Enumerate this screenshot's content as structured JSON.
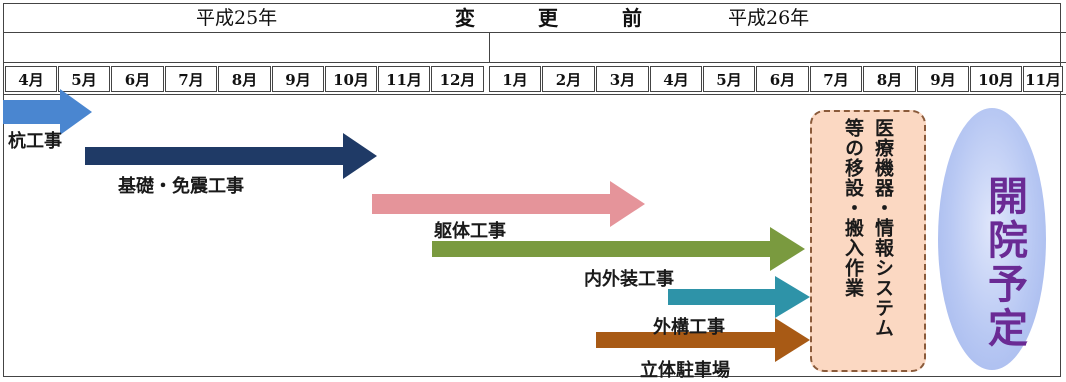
{
  "header": {
    "title_chars": [
      "変",
      "更",
      "前"
    ]
  },
  "years": [
    {
      "label": "平成25年"
    },
    {
      "label": "平成26年"
    }
  ],
  "months": [
    "4月",
    "5月",
    "6月",
    "7月",
    "8月",
    "9月",
    "10月",
    "11月",
    "12月",
    "1月",
    "2月",
    "3月",
    "4月",
    "5月",
    "6月",
    "7月",
    "8月",
    "9月",
    "10月",
    "11月"
  ],
  "tasks": [
    {
      "label": "杭工事",
      "color": "#4a86d0"
    },
    {
      "label": "基礎・免震工事",
      "color": "#1f3a66"
    },
    {
      "label": "躯体工事",
      "color": "#e5949a"
    },
    {
      "label": "内外装工事",
      "color": "#7a9a3f"
    },
    {
      "label": "外構工事",
      "color": "#2e93a8"
    },
    {
      "label": "立体駐車場",
      "color": "#a85a15"
    }
  ],
  "move_box": {
    "lines": [
      "医療機器・情報システム",
      "等の移設・搬入作業"
    ],
    "fill": "#fbd8c2"
  },
  "opening": {
    "label": "開院予定",
    "color": "#6a2a94"
  }
}
